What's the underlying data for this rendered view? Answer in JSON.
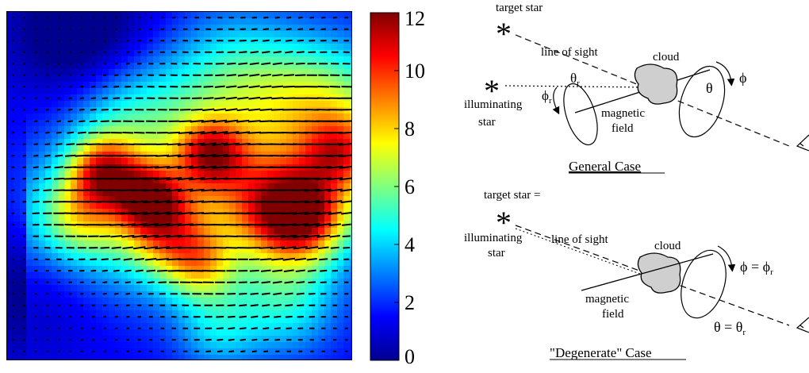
{
  "colorbar": {
    "ticks": [
      "0",
      "2",
      "4",
      "6",
      "8",
      "10",
      "12"
    ],
    "min": 0,
    "max": 12,
    "colormap": [
      "#00008f",
      "#0000ff",
      "#0080ff",
      "#00ffff",
      "#80ff80",
      "#ffff00",
      "#ff8000",
      "#ff0000",
      "#800000"
    ]
  },
  "map": {
    "field_range": [
      0,
      12
    ],
    "description_colors": {
      "low": "#0000c8",
      "high": "#c80000"
    }
  },
  "general_case": {
    "caption": "General Case",
    "labels": {
      "target_star": "target star",
      "line_of_sight": "line of sight",
      "cloud": "cloud",
      "illuminating_star": [
        "illuminating",
        "star"
      ],
      "magnetic_field": [
        "magnetic",
        "field"
      ],
      "phi_r": "ϕ",
      "phi_r_sub": "r",
      "theta_r": "θ",
      "theta_r_sub": "r",
      "theta": "θ",
      "phi": "ϕ"
    }
  },
  "degenerate_case": {
    "caption": "\"Degenerate\" Case",
    "labels": {
      "target_star": "target star =",
      "illuminating_star": [
        "illuminating",
        "star"
      ],
      "line_of_sight": "line of sight",
      "cloud": "cloud",
      "magnetic_field": [
        "magnetic",
        "field"
      ],
      "phi_eq": "ϕ = ϕ",
      "phi_eq_sub": "r",
      "theta_eq": "θ = θ",
      "theta_eq_sub": "r"
    }
  }
}
